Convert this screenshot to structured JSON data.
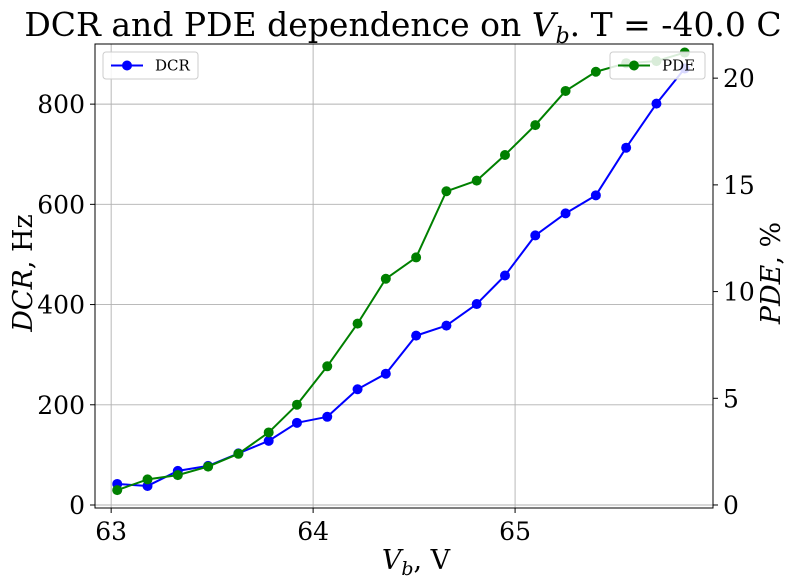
{
  "chart_data": {
    "type": "line",
    "title": "DCR and PDE dependence on V_b. T = -40.0 C",
    "title_parts": {
      "pre": "DCR and PDE dependence on ",
      "var": "V",
      "sub": "b",
      "post": ". T = -40.0 C"
    },
    "xlabel": "V_b, V",
    "xlabel_parts": {
      "var": "V",
      "sub": "b",
      "post": ", V"
    },
    "ylabel_left": "DCR, Hz",
    "ylabel_left_parts": {
      "var": "DCR",
      "post": ", Hz"
    },
    "ylabel_right": "PDE, %",
    "ylabel_right_parts": {
      "var": "PDE",
      "post": ", %"
    },
    "xlim": [
      62.92,
      65.98
    ],
    "ylim_left": [
      -6,
      920
    ],
    "ylim_right": [
      -0.14,
      21.6
    ],
    "xticks": [
      63,
      64,
      65
    ],
    "xtick_labels": [
      "63",
      "64",
      "65"
    ],
    "yticks_left": [
      0,
      200,
      400,
      600,
      800
    ],
    "ytick_labels_left": [
      "0",
      "200",
      "400",
      "600",
      "800"
    ],
    "yticks_right": [
      0,
      5,
      10,
      15,
      20
    ],
    "ytick_labels_right": [
      "0",
      "5",
      "10",
      "15",
      "20"
    ],
    "grid": true,
    "series": [
      {
        "name": "DCR",
        "axis": "left",
        "color": "#0000ff",
        "legend_position": "upper left",
        "x": [
          63.03,
          63.18,
          63.33,
          63.48,
          63.63,
          63.78,
          63.92,
          64.07,
          64.22,
          64.36,
          64.51,
          64.66,
          64.81,
          64.95,
          65.1,
          65.25,
          65.4,
          65.55,
          65.7,
          65.84
        ],
        "values": [
          42,
          38,
          68,
          78,
          103,
          128,
          164,
          176,
          231,
          262,
          338,
          358,
          401,
          458,
          538,
          582,
          618,
          713,
          801,
          871
        ]
      },
      {
        "name": "PDE",
        "axis": "right",
        "color": "#008000",
        "legend_position": "upper right",
        "x": [
          63.03,
          63.18,
          63.33,
          63.48,
          63.63,
          63.78,
          63.92,
          64.07,
          64.22,
          64.36,
          64.51,
          64.66,
          64.81,
          64.95,
          65.1,
          65.25,
          65.4,
          65.55,
          65.7,
          65.84
        ],
        "values": [
          0.7,
          1.2,
          1.4,
          1.8,
          2.4,
          3.4,
          4.7,
          6.5,
          8.5,
          10.6,
          11.6,
          14.7,
          15.2,
          16.4,
          17.8,
          19.4,
          20.3,
          20.7,
          20.8,
          21.2
        ]
      }
    ]
  }
}
